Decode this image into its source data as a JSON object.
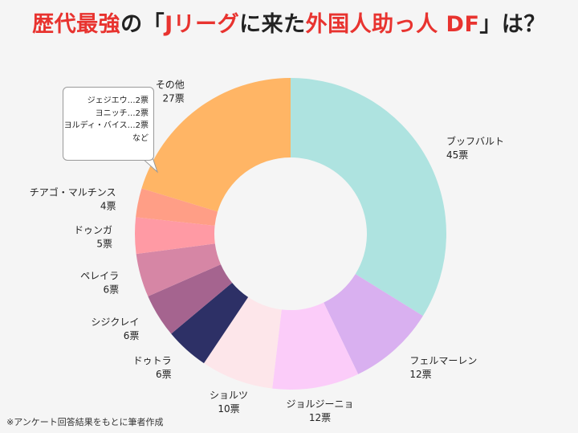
{
  "title": {
    "part1": "歴代最強",
    "part2": "の「",
    "part3": "Jリーグ",
    "part4": "に来た",
    "part5": "外国人助っ人 DF",
    "part6": "」は？"
  },
  "footnote": "※アンケート回答結果をもとに筆者作成",
  "callout": {
    "lines": [
      "ジェジエウ…2票",
      "ヨニッチ…2票",
      "ヨルディ・バイス…2票",
      "など"
    ]
  },
  "chart_data": {
    "type": "pie",
    "donut": true,
    "unit": "票",
    "slices": [
      {
        "label": "ブッフバルト",
        "value": 45,
        "value_label": "45票",
        "color": "#aee3e0"
      },
      {
        "label": "フェルマーレン",
        "value": 12,
        "value_label": "12票",
        "color": "#d9b0f0"
      },
      {
        "label": "ジョルジーニョ",
        "value": 12,
        "value_label": "12票",
        "color": "#fbccf9"
      },
      {
        "label": "ショルツ",
        "value": 10,
        "value_label": "10票",
        "color": "#fde6ea"
      },
      {
        "label": "ドゥトラ",
        "value": 6,
        "value_label": "6票",
        "color": "#2d3066"
      },
      {
        "label": "シジクレイ",
        "value": 6,
        "value_label": "6票",
        "color": "#a5648f"
      },
      {
        "label": "ペレイラ",
        "value": 6,
        "value_label": "6票",
        "color": "#d686a5"
      },
      {
        "label": "ドゥンガ",
        "value": 5,
        "value_label": "5票",
        "color": "#ff9aa4"
      },
      {
        "label": "チアゴ・マルチンス",
        "value": 4,
        "value_label": "4票",
        "color": "#ff9e86"
      },
      {
        "label": "その他",
        "value": 27,
        "value_label": "27票",
        "color": "#ffb565"
      }
    ]
  }
}
